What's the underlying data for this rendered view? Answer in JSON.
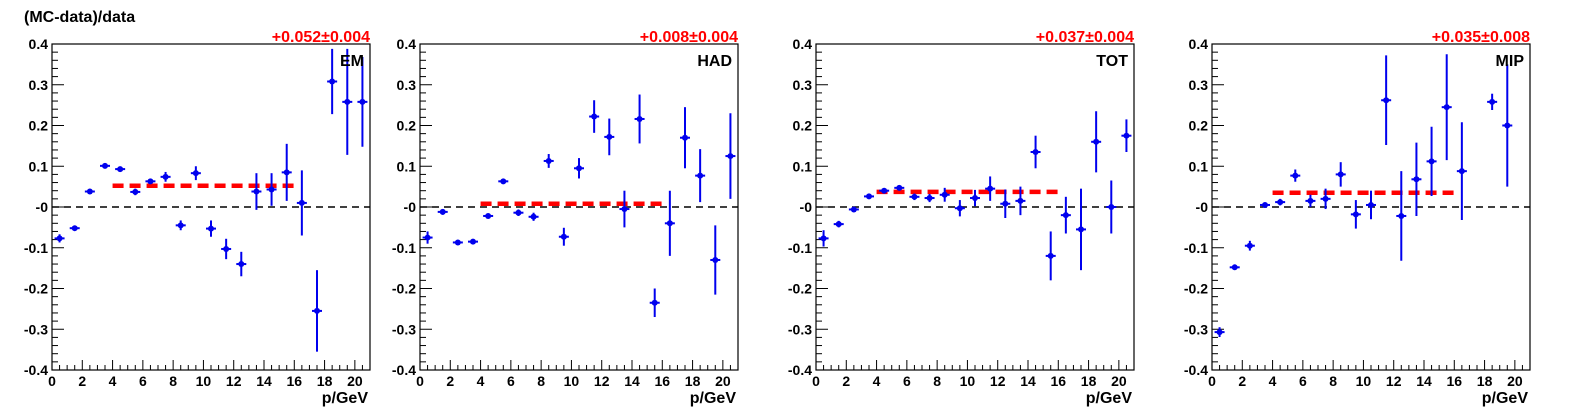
{
  "ylabel": "(MC-data)/data",
  "colors": {
    "points": "#0000ee",
    "fit": "#ff0000",
    "zero": "#000000"
  },
  "chart_data": [
    {
      "type": "scatter",
      "label": "EM",
      "fit_label": "+0.052±0.004",
      "fit": {
        "x_from": 4,
        "x_to": 16,
        "y": 0.052
      },
      "xlabel": "p/GeV",
      "xlim": [
        0,
        21
      ],
      "ylim": [
        -0.4,
        0.4
      ],
      "xticks": [
        0,
        2,
        4,
        6,
        8,
        10,
        12,
        14,
        16,
        18,
        20
      ],
      "yticks": [
        "-0.4",
        "-0.3",
        "-0.2",
        "-0.1",
        "-0",
        "0.1",
        "0.2",
        "0.3",
        "0.4"
      ],
      "points": [
        {
          "x": 0.5,
          "y": -0.077,
          "err": 0.01
        },
        {
          "x": 1.5,
          "y": -0.052,
          "err": 0.006
        },
        {
          "x": 2.5,
          "y": 0.038,
          "err": 0.005
        },
        {
          "x": 3.5,
          "y": 0.101,
          "err": 0.005
        },
        {
          "x": 4.5,
          "y": 0.093,
          "err": 0.005
        },
        {
          "x": 5.5,
          "y": 0.037,
          "err": 0.008
        },
        {
          "x": 6.5,
          "y": 0.063,
          "err": 0.006
        },
        {
          "x": 7.5,
          "y": 0.074,
          "err": 0.012
        },
        {
          "x": 8.5,
          "y": -0.045,
          "err": 0.012
        },
        {
          "x": 9.5,
          "y": 0.083,
          "err": 0.017
        },
        {
          "x": 10.5,
          "y": -0.053,
          "err": 0.02
        },
        {
          "x": 11.5,
          "y": -0.103,
          "err": 0.025
        },
        {
          "x": 12.5,
          "y": -0.14,
          "err": 0.03
        },
        {
          "x": 13.5,
          "y": 0.038,
          "err": 0.045
        },
        {
          "x": 14.5,
          "y": 0.043,
          "err": 0.04
        },
        {
          "x": 15.5,
          "y": 0.085,
          "err": 0.07
        },
        {
          "x": 16.5,
          "y": 0.01,
          "err": 0.08
        },
        {
          "x": 17.5,
          "y": -0.255,
          "err": 0.1
        },
        {
          "x": 18.5,
          "y": 0.308,
          "err": 0.08
        },
        {
          "x": 19.5,
          "y": 0.258,
          "err": 0.13
        },
        {
          "x": 20.5,
          "y": 0.258,
          "err": 0.11
        }
      ]
    },
    {
      "type": "scatter",
      "label": "HAD",
      "fit_label": "+0.008±0.004",
      "fit": {
        "x_from": 4,
        "x_to": 16,
        "y": 0.008
      },
      "xlabel": "p/GeV",
      "xlim": [
        0,
        21
      ],
      "ylim": [
        -0.4,
        0.4
      ],
      "xticks": [
        0,
        2,
        4,
        6,
        8,
        10,
        12,
        14,
        16,
        18,
        20
      ],
      "yticks": [
        "-0.4",
        "-0.3",
        "-0.2",
        "-0.1",
        "-0",
        "0.1",
        "0.2",
        "0.3",
        "0.4"
      ],
      "points": [
        {
          "x": 0.5,
          "y": -0.075,
          "err": 0.015
        },
        {
          "x": 1.5,
          "y": -0.012,
          "err": 0.007
        },
        {
          "x": 2.5,
          "y": -0.087,
          "err": 0.005
        },
        {
          "x": 3.5,
          "y": -0.085,
          "err": 0.005
        },
        {
          "x": 4.5,
          "y": -0.022,
          "err": 0.005
        },
        {
          "x": 5.5,
          "y": 0.063,
          "err": 0.005
        },
        {
          "x": 6.5,
          "y": -0.014,
          "err": 0.008
        },
        {
          "x": 7.5,
          "y": -0.024,
          "err": 0.01
        },
        {
          "x": 8.5,
          "y": 0.113,
          "err": 0.017
        },
        {
          "x": 9.5,
          "y": -0.073,
          "err": 0.022
        },
        {
          "x": 10.5,
          "y": 0.095,
          "err": 0.025
        },
        {
          "x": 11.5,
          "y": 0.222,
          "err": 0.04
        },
        {
          "x": 12.5,
          "y": 0.172,
          "err": 0.045
        },
        {
          "x": 13.5,
          "y": -0.005,
          "err": 0.045
        },
        {
          "x": 14.5,
          "y": 0.216,
          "err": 0.06
        },
        {
          "x": 15.5,
          "y": -0.235,
          "err": 0.035
        },
        {
          "x": 16.5,
          "y": -0.04,
          "err": 0.08
        },
        {
          "x": 17.5,
          "y": 0.17,
          "err": 0.075
        },
        {
          "x": 18.5,
          "y": 0.077,
          "err": 0.065
        },
        {
          "x": 19.5,
          "y": -0.13,
          "err": 0.085
        },
        {
          "x": 20.5,
          "y": 0.125,
          "err": 0.105
        }
      ]
    },
    {
      "type": "scatter",
      "label": "TOT",
      "fit_label": "+0.037±0.004",
      "fit": {
        "x_from": 4,
        "x_to": 16,
        "y": 0.037
      },
      "xlabel": "p/GeV",
      "xlim": [
        0,
        21
      ],
      "ylim": [
        -0.4,
        0.4
      ],
      "xticks": [
        0,
        2,
        4,
        6,
        8,
        10,
        12,
        14,
        16,
        18,
        20
      ],
      "yticks": [
        "-0.4",
        "-0.3",
        "-0.2",
        "-0.1",
        "-0",
        "0.1",
        "0.2",
        "0.3",
        "0.4"
      ],
      "points": [
        {
          "x": 0.5,
          "y": -0.077,
          "err": 0.02
        },
        {
          "x": 1.5,
          "y": -0.042,
          "err": 0.008
        },
        {
          "x": 2.5,
          "y": -0.006,
          "err": 0.006
        },
        {
          "x": 3.5,
          "y": 0.026,
          "err": 0.006
        },
        {
          "x": 4.5,
          "y": 0.04,
          "err": 0.005
        },
        {
          "x": 5.5,
          "y": 0.047,
          "err": 0.006
        },
        {
          "x": 6.5,
          "y": 0.025,
          "err": 0.008
        },
        {
          "x": 7.5,
          "y": 0.022,
          "err": 0.01
        },
        {
          "x": 8.5,
          "y": 0.03,
          "err": 0.017
        },
        {
          "x": 9.5,
          "y": -0.003,
          "err": 0.02
        },
        {
          "x": 10.5,
          "y": 0.022,
          "err": 0.02
        },
        {
          "x": 11.5,
          "y": 0.045,
          "err": 0.03
        },
        {
          "x": 12.5,
          "y": 0.008,
          "err": 0.035
        },
        {
          "x": 13.5,
          "y": 0.015,
          "err": 0.035
        },
        {
          "x": 14.5,
          "y": 0.135,
          "err": 0.04
        },
        {
          "x": 15.5,
          "y": -0.12,
          "err": 0.06
        },
        {
          "x": 16.5,
          "y": -0.02,
          "err": 0.045
        },
        {
          "x": 17.5,
          "y": -0.055,
          "err": 0.1
        },
        {
          "x": 18.5,
          "y": 0.16,
          "err": 0.075
        },
        {
          "x": 19.5,
          "y": 0.0,
          "err": 0.065
        },
        {
          "x": 20.5,
          "y": 0.175,
          "err": 0.04
        }
      ]
    },
    {
      "type": "scatter",
      "label": "MIP",
      "fit_label": "+0.035±0.008",
      "fit": {
        "x_from": 4,
        "x_to": 16,
        "y": 0.035
      },
      "xlabel": "p/GeV",
      "xlim": [
        0,
        21
      ],
      "ylim": [
        -0.4,
        0.4
      ],
      "xticks": [
        0,
        2,
        4,
        6,
        8,
        10,
        12,
        14,
        16,
        18,
        20
      ],
      "yticks": [
        "-0.4",
        "-0.3",
        "-0.2",
        "-0.1",
        "-0",
        "0.1",
        "0.2",
        "0.3",
        "0.4"
      ],
      "points": [
        {
          "x": 0.5,
          "y": -0.307,
          "err": 0.012
        },
        {
          "x": 1.5,
          "y": -0.148,
          "err": 0.006
        },
        {
          "x": 2.5,
          "y": -0.095,
          "err": 0.012
        },
        {
          "x": 3.5,
          "y": 0.005,
          "err": 0.006
        },
        {
          "x": 4.5,
          "y": 0.012,
          "err": 0.008
        },
        {
          "x": 5.5,
          "y": 0.077,
          "err": 0.015
        },
        {
          "x": 6.5,
          "y": 0.015,
          "err": 0.015
        },
        {
          "x": 7.5,
          "y": 0.02,
          "err": 0.025
        },
        {
          "x": 8.5,
          "y": 0.08,
          "err": 0.03
        },
        {
          "x": 9.5,
          "y": -0.018,
          "err": 0.035
        },
        {
          "x": 10.5,
          "y": 0.005,
          "err": 0.035
        },
        {
          "x": 11.5,
          "y": 0.262,
          "err": 0.11
        },
        {
          "x": 12.5,
          "y": -0.022,
          "err": 0.11
        },
        {
          "x": 13.5,
          "y": 0.068,
          "err": 0.09
        },
        {
          "x": 14.5,
          "y": 0.112,
          "err": 0.085
        },
        {
          "x": 15.5,
          "y": 0.245,
          "err": 0.13
        },
        {
          "x": 16.5,
          "y": 0.088,
          "err": 0.12
        },
        {
          "x": 18.5,
          "y": 0.258,
          "err": 0.02
        },
        {
          "x": 19.5,
          "y": 0.2,
          "err": 0.15
        }
      ]
    }
  ]
}
